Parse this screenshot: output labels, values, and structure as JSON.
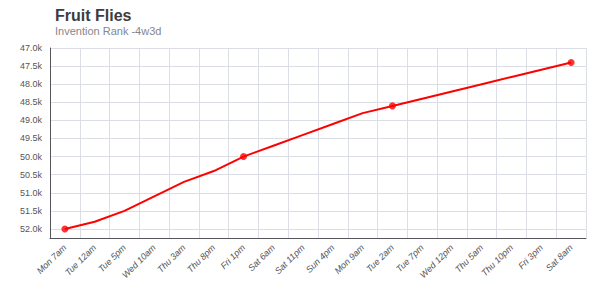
{
  "chart_data": {
    "type": "line",
    "title": "Fruit Flies",
    "subtitle": "Invention Rank -4w3d",
    "categories": [
      "Mon 7am",
      "Tue 12am",
      "Tue 5pm",
      "Wed 10am",
      "Thu 3am",
      "Thu 8pm",
      "Fri 1pm",
      "Sat 6am",
      "Sat 11pm",
      "Sun 4pm",
      "Mon 9am",
      "Tue 2am",
      "Tue 7pm",
      "Wed 12pm",
      "Thu 5am",
      "Thu 10pm",
      "Fri 3pm",
      "Sat 8am"
    ],
    "series": [
      {
        "type": "line",
        "color": "#ff0000",
        "values": [
          52000,
          51800,
          51500,
          51100,
          50700,
          50400,
          50000,
          49700,
          49400,
          49100,
          48800,
          48600,
          48400,
          48200,
          48000,
          47800,
          47600,
          47400
        ]
      },
      {
        "type": "scatter",
        "color": "#ff0000",
        "marker": "circle",
        "values": [
          52000,
          null,
          null,
          null,
          null,
          null,
          50000,
          null,
          null,
          null,
          null,
          48600,
          null,
          null,
          null,
          null,
          null,
          47400
        ]
      }
    ],
    "ylim": [
      52250,
      47000
    ],
    "yticks": [
      {
        "value": 47000,
        "label": "47.0k"
      },
      {
        "value": 47500,
        "label": "47.5k"
      },
      {
        "value": 48000,
        "label": "48.0k"
      },
      {
        "value": 48500,
        "label": "48.5k"
      },
      {
        "value": 49000,
        "label": "49.0k"
      },
      {
        "value": 49500,
        "label": "49.5k"
      },
      {
        "value": 50000,
        "label": "50.0k"
      },
      {
        "value": 50500,
        "label": "50.5k"
      },
      {
        "value": 51000,
        "label": "51.0k"
      },
      {
        "value": 51500,
        "label": "51.5k"
      },
      {
        "value": 52000,
        "label": "52.0k"
      }
    ],
    "grid": true
  }
}
